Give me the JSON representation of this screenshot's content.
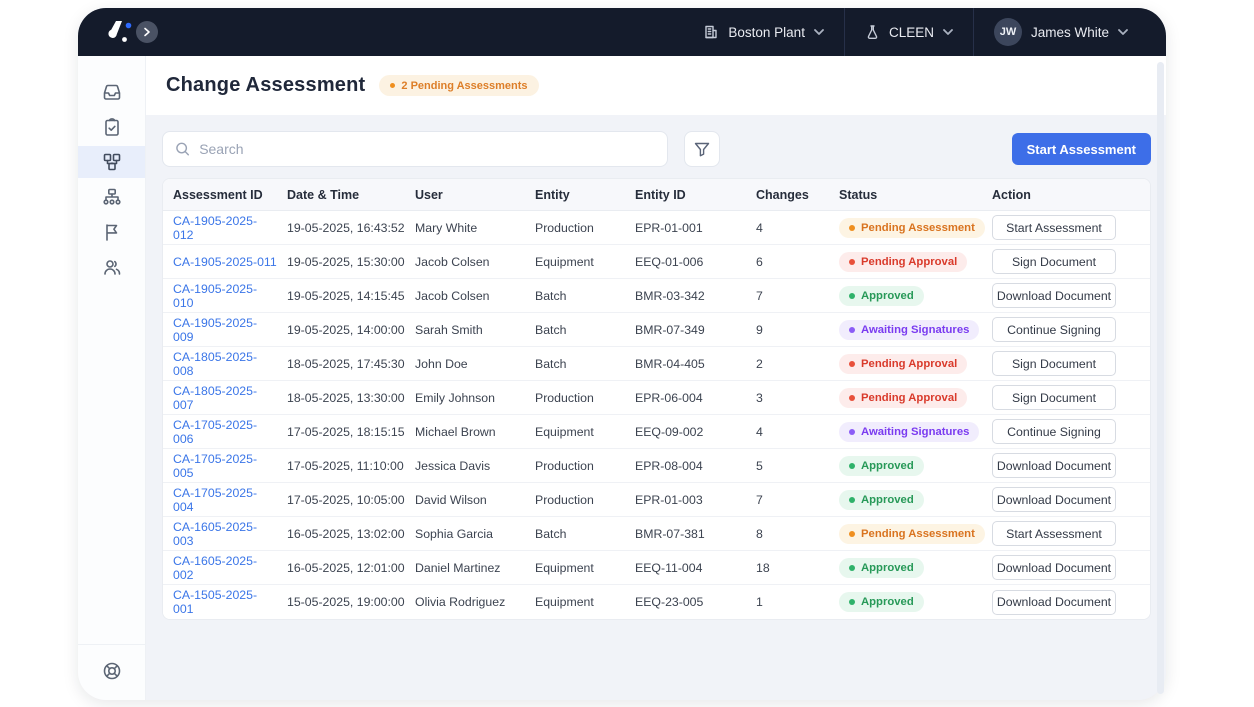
{
  "header": {
    "site": {
      "label": "Boston Plant"
    },
    "workspace": {
      "label": "CLEEN"
    },
    "user": {
      "initials": "JW",
      "name": "James White"
    }
  },
  "sidebar": {
    "items": [
      {
        "name": "inbox",
        "active": false
      },
      {
        "name": "tasks",
        "active": false
      },
      {
        "name": "change-assessment",
        "active": true
      },
      {
        "name": "hierarchy",
        "active": false
      },
      {
        "name": "flags",
        "active": false
      },
      {
        "name": "users",
        "active": false
      }
    ],
    "footer": {
      "name": "help"
    }
  },
  "page": {
    "title": "Change Assessment",
    "pending_badge": "2 Pending Assessments",
    "search_placeholder": "Search",
    "start_button": "Start Assessment"
  },
  "table": {
    "columns": [
      "Assessment ID",
      "Date & Time",
      "User",
      "Entity",
      "Entity ID",
      "Changes",
      "Status",
      "Action"
    ],
    "rows": [
      {
        "id": "CA-1905-2025-012",
        "datetime": "19-05-2025, 16:43:52",
        "user": "Mary White",
        "entity": "Production",
        "entity_id": "EPR-01-001",
        "changes": "4",
        "status": "Pending Assessment",
        "action": "Start Assessment"
      },
      {
        "id": "CA-1905-2025-011",
        "datetime": "19-05-2025, 15:30:00",
        "user": "Jacob Colsen",
        "entity": "Equipment",
        "entity_id": "EEQ-01-006",
        "changes": "6",
        "status": "Pending Approval",
        "action": "Sign Document"
      },
      {
        "id": "CA-1905-2025-010",
        "datetime": "19-05-2025, 14:15:45",
        "user": "Jacob Colsen",
        "entity": "Batch",
        "entity_id": "BMR-03-342",
        "changes": "7",
        "status": "Approved",
        "action": "Download Document"
      },
      {
        "id": "CA-1905-2025-009",
        "datetime": "19-05-2025, 14:00:00",
        "user": "Sarah Smith",
        "entity": "Batch",
        "entity_id": "BMR-07-349",
        "changes": "9",
        "status": "Awaiting Signatures",
        "action": "Continue Signing"
      },
      {
        "id": "CA-1805-2025-008",
        "datetime": "18-05-2025, 17:45:30",
        "user": "John Doe",
        "entity": "Batch",
        "entity_id": "BMR-04-405",
        "changes": "2",
        "status": "Pending Approval",
        "action": "Sign Document"
      },
      {
        "id": "CA-1805-2025-007",
        "datetime": "18-05-2025, 13:30:00",
        "user": "Emily Johnson",
        "entity": "Production",
        "entity_id": "EPR-06-004",
        "changes": "3",
        "status": "Pending Approval",
        "action": "Sign Document"
      },
      {
        "id": "CA-1705-2025-006",
        "datetime": "17-05-2025, 18:15:15",
        "user": "Michael Brown",
        "entity": "Equipment",
        "entity_id": "EEQ-09-002",
        "changes": "4",
        "status": "Awaiting Signatures",
        "action": "Continue Signing"
      },
      {
        "id": "CA-1705-2025-005",
        "datetime": "17-05-2025, 11:10:00",
        "user": "Jessica Davis",
        "entity": "Production",
        "entity_id": "EPR-08-004",
        "changes": "5",
        "status": "Approved",
        "action": "Download Document"
      },
      {
        "id": "CA-1705-2025-004",
        "datetime": "17-05-2025, 10:05:00",
        "user": "David Wilson",
        "entity": "Production",
        "entity_id": "EPR-01-003",
        "changes": "7",
        "status": "Approved",
        "action": "Download Document"
      },
      {
        "id": "CA-1605-2025-003",
        "datetime": "16-05-2025, 13:02:00",
        "user": "Sophia Garcia",
        "entity": "Batch",
        "entity_id": "BMR-07-381",
        "changes": "8",
        "status": "Pending Assessment",
        "action": "Start Assessment"
      },
      {
        "id": "CA-1605-2025-002",
        "datetime": "16-05-2025, 12:01:00",
        "user": "Daniel Martinez",
        "entity": "Equipment",
        "entity_id": "EEQ-11-004",
        "changes": "18",
        "status": "Approved",
        "action": "Download Document"
      },
      {
        "id": "CA-1505-2025-001",
        "datetime": "15-05-2025, 19:00:00",
        "user": "Olivia Rodriguez",
        "entity": "Equipment",
        "entity_id": "EEQ-23-005",
        "changes": "1",
        "status": "Approved",
        "action": "Download Document"
      }
    ]
  },
  "status_styles": {
    "Pending Assessment": {
      "bg": "#fdf4e3",
      "text": "#d9731f",
      "dot": "#ef8f1f"
    },
    "Pending Approval": {
      "bg": "#fdeceb",
      "text": "#d93a2b",
      "dot": "#e8503a"
    },
    "Approved": {
      "bg": "#e7f7ee",
      "text": "#279958",
      "dot": "#2fb26a"
    },
    "Awaiting Signatures": {
      "bg": "#f1edfd",
      "text": "#7a3bf0",
      "dot": "#8b5cf6"
    }
  },
  "colors": {
    "topbar_bg": "#141b2b",
    "accent_blue": "#3d6ee8",
    "link_blue": "#3b76e8",
    "badge_bg": "#fcf2e2",
    "badge_text": "#dd7e28",
    "active_sidebar_bg": "#e8eefb"
  }
}
